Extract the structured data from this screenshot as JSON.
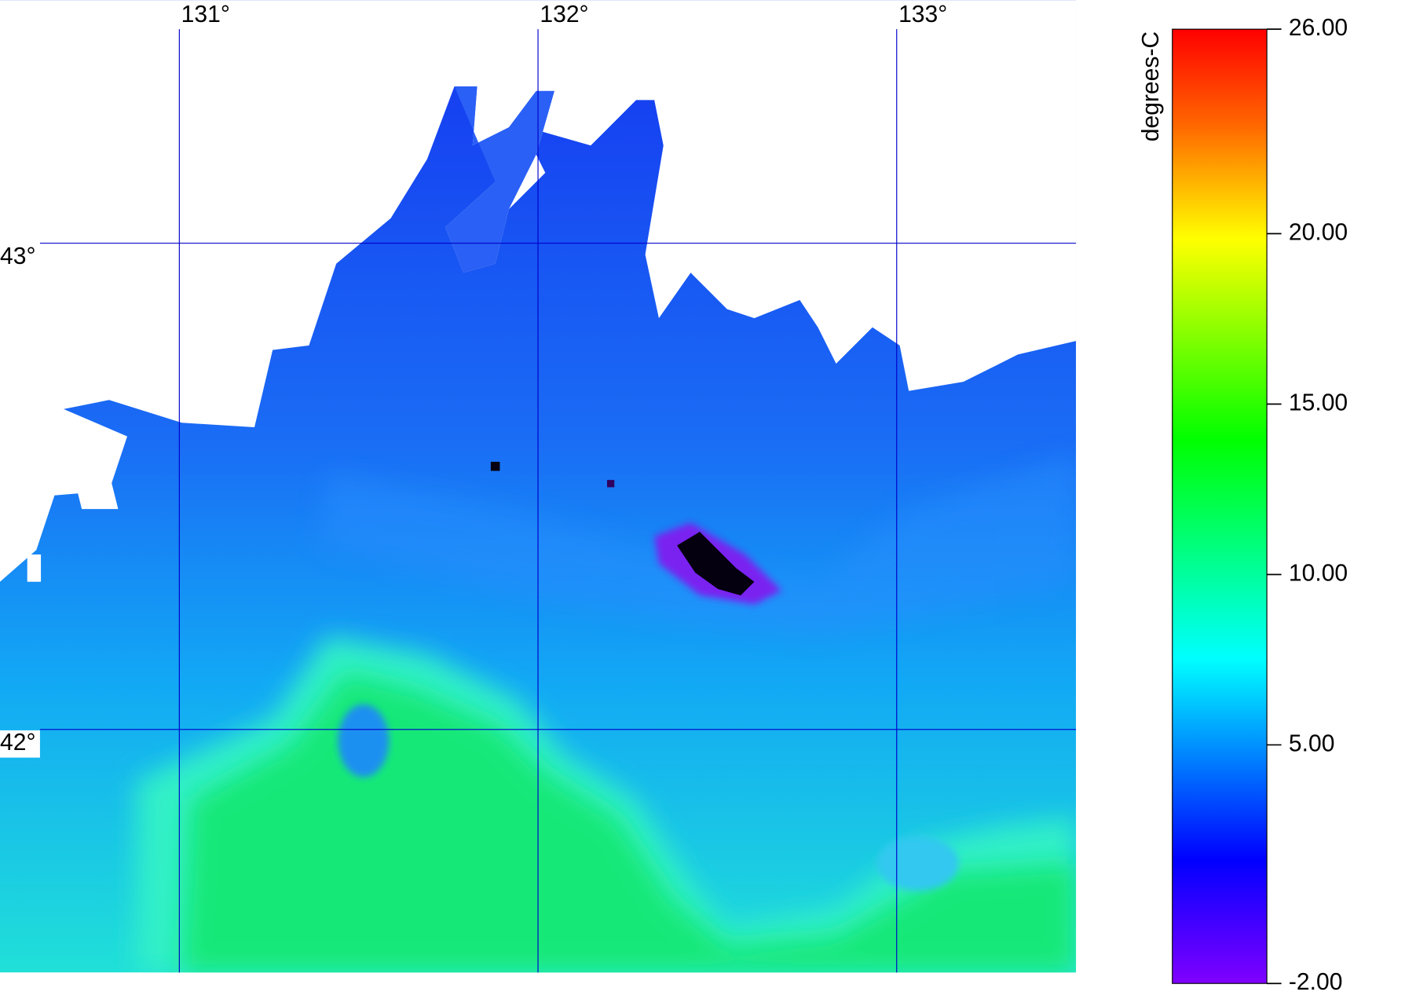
{
  "map": {
    "graticule": {
      "lonlim": [
        130.5,
        133.5
      ],
      "latlim": [
        41.5,
        43.5
      ],
      "lons": [
        {
          "value": 131,
          "label": "131°"
        },
        {
          "value": 132,
          "label": "132°"
        },
        {
          "value": 133,
          "label": "133°"
        }
      ],
      "lats": [
        {
          "value": 43,
          "label": "43°"
        },
        {
          "value": 42,
          "label": "42°"
        }
      ],
      "color": "#0000cc"
    },
    "colorbar": {
      "label": "degrees-C",
      "lim": [
        -2,
        26
      ],
      "ticks": [
        {
          "value": 26,
          "label": "26.00"
        },
        {
          "value": 20,
          "label": "20.00"
        },
        {
          "value": 15,
          "label": "15.00"
        },
        {
          "value": 10,
          "label": "10.00"
        },
        {
          "value": 5,
          "label": "5.00"
        },
        {
          "value": -2,
          "label": "-2.00"
        }
      ]
    }
  }
}
